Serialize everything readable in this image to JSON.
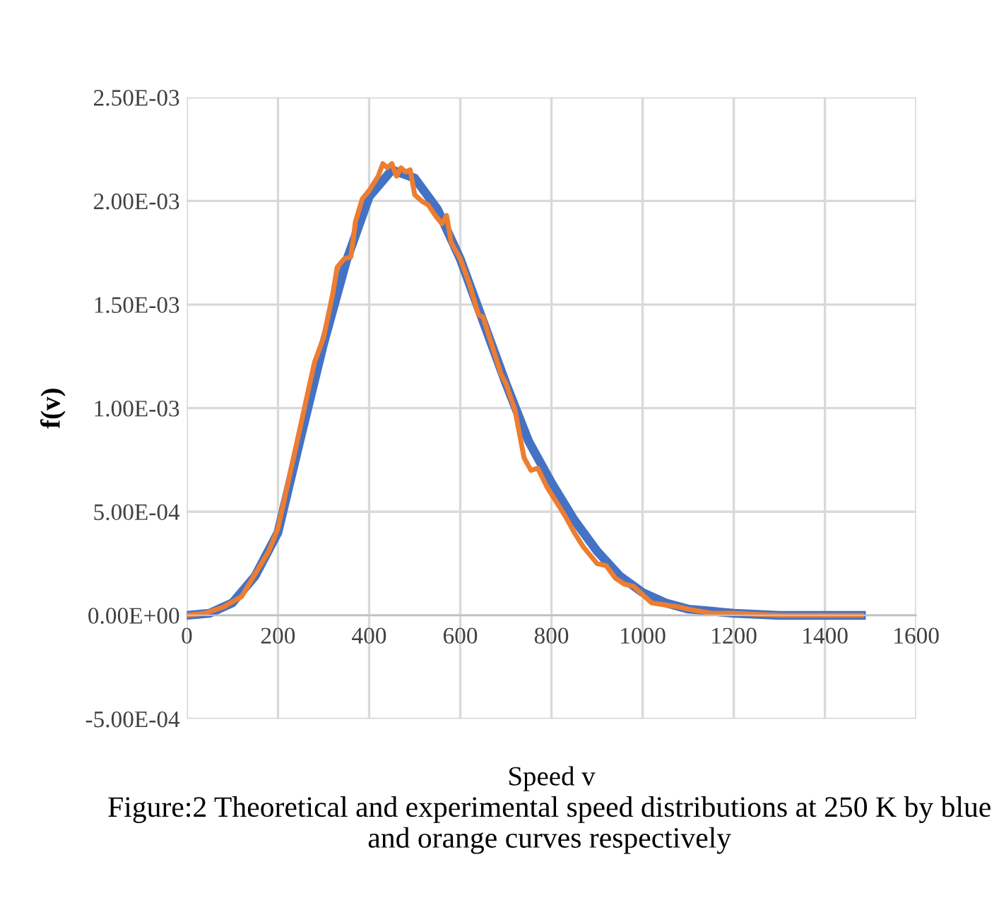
{
  "chart_data": {
    "type": "line",
    "xlabel": "Speed v",
    "ylabel": "f(v)",
    "annotations": [
      "Figure:2 Theoretical and experimental speed distributions at 250 K by blue and orange curves respectively"
    ],
    "series": [
      {
        "color": "#4472c4",
        "x": [
          0,
          50,
          100,
          150,
          200,
          250,
          300,
          350,
          400,
          450,
          500,
          550,
          600,
          650,
          700,
          750,
          800,
          850,
          900,
          950,
          1000,
          1050,
          1100,
          1150,
          1200,
          1300,
          1400,
          1480
        ],
        "values": [
          0,
          1e-05,
          6e-05,
          0.00019,
          0.0004,
          0.00086,
          0.00131,
          0.00171,
          0.00202,
          0.00215,
          0.00211,
          0.00196,
          0.00172,
          0.00142,
          0.00112,
          0.00084,
          0.00064,
          0.00046,
          0.00031,
          0.00019,
          0.00011,
          6e-05,
          3e-05,
          2e-05,
          1e-05,
          0,
          0,
          0
        ]
      },
      {
        "color": "#ed7d31",
        "x": [
          0,
          40,
          80,
          120,
          150,
          180,
          200,
          230,
          260,
          280,
          300,
          320,
          330,
          345,
          360,
          370,
          385,
          400,
          420,
          430,
          440,
          450,
          460,
          470,
          480,
          490,
          500,
          515,
          530,
          545,
          560,
          570,
          580,
          600,
          620,
          640,
          650,
          670,
          690,
          700,
          720,
          740,
          755,
          770,
          790,
          810,
          830,
          850,
          870,
          900,
          920,
          940,
          960,
          980,
          1000,
          1020,
          1050,
          1080,
          1100,
          1150,
          1200,
          1300,
          1400,
          1480
        ],
        "values": [
          0,
          1e-05,
          4e-05,
          9e-05,
          0.0002,
          0.00031,
          0.00042,
          0.00072,
          0.00102,
          0.00122,
          0.00134,
          0.00155,
          0.00168,
          0.00172,
          0.00173,
          0.0019,
          0.00201,
          0.00205,
          0.00212,
          0.00218,
          0.00216,
          0.00218,
          0.00212,
          0.00216,
          0.00214,
          0.00215,
          0.00203,
          0.002,
          0.00198,
          0.00193,
          0.00189,
          0.00193,
          0.0018,
          0.00172,
          0.0016,
          0.00145,
          0.00144,
          0.0013,
          0.00116,
          0.00112,
          0.00099,
          0.00076,
          0.0007,
          0.00071,
          0.00062,
          0.00055,
          0.00048,
          0.0004,
          0.00033,
          0.00025,
          0.00024,
          0.00018,
          0.00015,
          0.00014,
          0.0001,
          6e-05,
          5e-05,
          4e-05,
          3e-05,
          1e-05,
          1e-05,
          0,
          0,
          0
        ]
      }
    ],
    "xlim": [
      0,
      1600
    ],
    "xticks": [
      0,
      200,
      400,
      600,
      800,
      1000,
      1200,
      1400,
      1600
    ],
    "ylim": [
      -0.0005,
      0.0025
    ],
    "yticks": [
      {
        "value": -0.0005,
        "label": "-5.00E-04"
      },
      {
        "value": 0,
        "label": "0.00E+00"
      },
      {
        "value": 0.0005,
        "label": "5.00E-04"
      },
      {
        "value": 0.001,
        "label": "1.00E-03"
      },
      {
        "value": 0.0015,
        "label": "1.50E-03"
      },
      {
        "value": 0.002,
        "label": "2.00E-03"
      },
      {
        "value": 0.0025,
        "label": "2.50E-03"
      }
    ],
    "grid": true,
    "marker": "none",
    "line_style": "solid"
  }
}
